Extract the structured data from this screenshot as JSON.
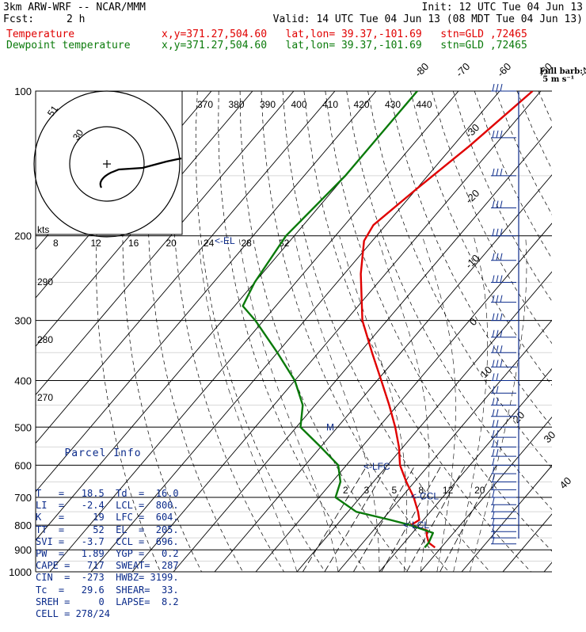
{
  "header": {
    "model": "3km ARW-WRF -- NCAR/MMM",
    "init": "Init: 12 UTC Tue 04 Jun 13",
    "fcst_label": "Fcst:",
    "fcst_value": "2 h",
    "valid": "Valid: 14 UTC Tue 04 Jun 13 (08 MDT Tue 04 Jun 13)",
    "temp_label": "Temperature",
    "temp_loc": "x,y=371.27,504.60   lat,lon= 39.37,-101.69   stn=GLD ,72465",
    "dew_label": "Dewpoint temperature",
    "dew_loc": "x,y=371.27,504.60   lat,lon= 39.37,-101.69   stn=GLD ,72465"
  },
  "barb_key": {
    "title": "Full barb:",
    "value": "5 m s⁻¹"
  },
  "parcel_info": {
    "title": "Parcel Info",
    "rows": [
      "T   =   18.5  Td  =  16.0",
      "LI  =   -2.4  LCL =  800.",
      "K   =     19  LFC =  604.",
      "TT  =     52  EL  =  205.",
      "SVI =   -3.7  CCL =  696.",
      "PW  =   1.89  YGP =   0.2",
      "CAPE =   717  SWEAT=  287",
      "CIN  =  -273  HWBZ= 3199.",
      "Tc  =   29.6  SHEAR=  33.",
      "SREH =     0  LAPSE=  8.2",
      "CELL = 278/24"
    ]
  },
  "chart_data": {
    "type": "line",
    "title": "",
    "xlabel": "",
    "ylabel": "",
    "pressure_levels": [
      100,
      200,
      300,
      400,
      500,
      600,
      700,
      800,
      900,
      1000
    ],
    "temp_ticks_top": [
      -80,
      -70,
      -60,
      -50,
      -40
    ],
    "temp_ticks_right": [
      -30,
      -20,
      -10,
      0,
      10,
      20,
      30,
      40
    ],
    "theta_labels": [
      370,
      380,
      390,
      400,
      410,
      420,
      430,
      440
    ],
    "mixing_ratio_labels": [
      2,
      3,
      5,
      8,
      12,
      20
    ],
    "hodograph_ring_labels": [
      8,
      12,
      16,
      20,
      24,
      28,
      32
    ],
    "hodograph": {
      "unit": "kts",
      "rings": [
        30,
        51
      ]
    },
    "height_labels": [
      290,
      280,
      270
    ],
    "level_markers": [
      {
        "label": "<-EL",
        "p": 205
      },
      {
        "label": "M",
        "p": 500
      },
      {
        "label": "<-LFC",
        "p": 604
      },
      {
        "label": "<-CCL",
        "p": 696
      },
      {
        "label": "<-LCL",
        "p": 800
      }
    ],
    "series": [
      {
        "name": "Temperature",
        "color": "#e00000",
        "points": [
          [
            100,
            -52
          ],
          [
            130,
            -56
          ],
          [
            160,
            -60
          ],
          [
            190,
            -63
          ],
          [
            205,
            -62
          ],
          [
            240,
            -56
          ],
          [
            300,
            -46
          ],
          [
            350,
            -37
          ],
          [
            400,
            -29
          ],
          [
            450,
            -22
          ],
          [
            500,
            -16
          ],
          [
            550,
            -11
          ],
          [
            600,
            -7
          ],
          [
            650,
            -2
          ],
          [
            700,
            3
          ],
          [
            750,
            7
          ],
          [
            780,
            9
          ],
          [
            800,
            8
          ],
          [
            820,
            13
          ],
          [
            840,
            14
          ],
          [
            870,
            16
          ],
          [
            890,
            18.5
          ]
        ]
      },
      {
        "name": "Dewpoint temperature",
        "color": "#0a7a0a",
        "points": [
          [
            100,
            -80
          ],
          [
            150,
            -80
          ],
          [
            200,
            -82
          ],
          [
            250,
            -80
          ],
          [
            280,
            -78
          ],
          [
            300,
            -72
          ],
          [
            350,
            -60
          ],
          [
            400,
            -50
          ],
          [
            450,
            -43
          ],
          [
            500,
            -39
          ],
          [
            550,
            -30
          ],
          [
            600,
            -22
          ],
          [
            650,
            -18
          ],
          [
            700,
            -16
          ],
          [
            750,
            -8
          ],
          [
            780,
            2
          ],
          [
            800,
            8
          ],
          [
            830,
            15
          ],
          [
            870,
            16
          ],
          [
            890,
            16
          ]
        ]
      }
    ],
    "wind_barbs_note": "vertical profile of wind barbs at right edge",
    "grid": true
  }
}
